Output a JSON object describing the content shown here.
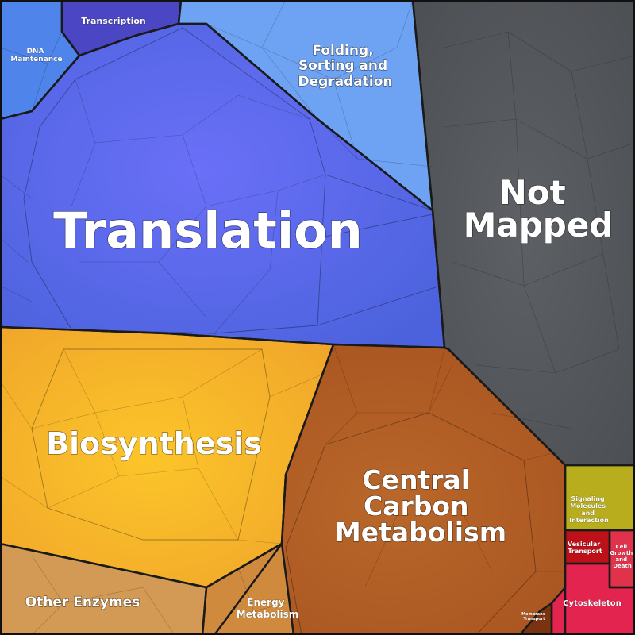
{
  "treemap": {
    "categories": [
      {
        "key": "translation",
        "label": [
          "Translation"
        ],
        "color": "#5b6ef0"
      },
      {
        "key": "not_mapped",
        "label": [
          "Not",
          "Mapped"
        ],
        "color": "#55585c"
      },
      {
        "key": "biosynthesis",
        "label": [
          "Biosynthesis"
        ],
        "color": "#f8b52a"
      },
      {
        "key": "central_carbon",
        "label": [
          "Central",
          "Carbon",
          "Metabolism"
        ],
        "color": "#b85f25"
      },
      {
        "key": "folding",
        "label": [
          "Folding,",
          "Sorting and",
          "Degradation"
        ],
        "color": "#6a9cf2"
      },
      {
        "key": "transcription",
        "label": [
          "Transcription"
        ],
        "color": "#4a46c4"
      },
      {
        "key": "dna_maintenance",
        "label": [
          "DNA",
          "Maintenance"
        ],
        "color": "#4c7ee8"
      },
      {
        "key": "other_enzymes",
        "label": [
          "Other Enzymes"
        ],
        "color": "#d29a55"
      },
      {
        "key": "energy_metabolism",
        "label": [
          "Energy",
          "Metabolism"
        ],
        "color": "#d08a3e"
      },
      {
        "key": "signaling",
        "label": [
          "Signaling",
          "Molecules",
          "and",
          "Interaction"
        ],
        "color": "#b8ad1c"
      },
      {
        "key": "vesicular",
        "label": [
          "Vesicular",
          "Transport"
        ],
        "color": "#bd1019"
      },
      {
        "key": "cell_growth",
        "label": [
          "Cell",
          "Growth",
          "and",
          "Death"
        ],
        "color": "#e0334b"
      },
      {
        "key": "cytoskeleton",
        "label": [
          "Cytoskeleton"
        ],
        "color": "#e3244e"
      },
      {
        "key": "membrane_transport",
        "label": [
          "Membrane",
          "Transport"
        ],
        "color": "#7a3310"
      }
    ]
  }
}
